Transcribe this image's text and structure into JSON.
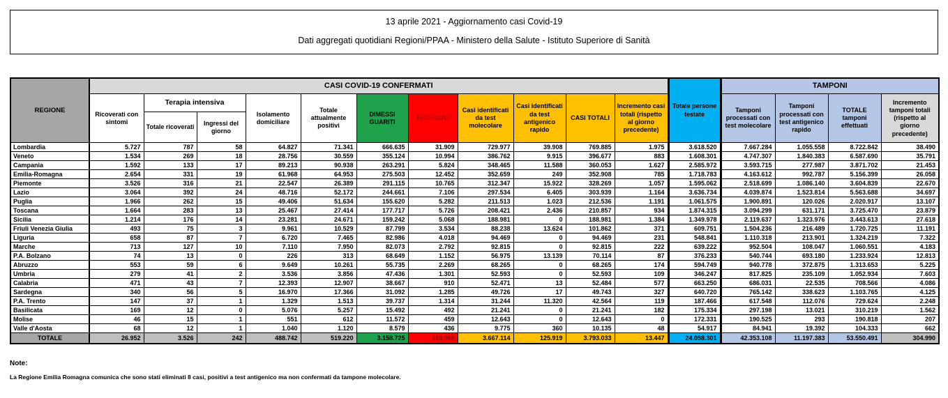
{
  "title": {
    "line1": "13 aprile 2021 - Aggiornamento casi Covid-19",
    "line2": "Dati aggregati quotidiani Regioni/PPAA - Ministero della Salute - Istituto Superiore di Sanità"
  },
  "table": {
    "headers": {
      "regione": "REGIONE",
      "confirmed_band": "CASI COVID-19 CONFERMATI",
      "tamponi_band": "TAMPONI",
      "terapia_band": "Terapia intensiva",
      "ricoverati": "Ricoverati con sintomi",
      "terapia_totale": "Totale ricoverati",
      "terapia_ingressi": "Ingressi del giorno",
      "isolamento": "Isolamento domiciliare",
      "attualmente_positivi": "Totale attualmente positivi",
      "dimessi": "DIMESSI GUARITI",
      "deceduti": "DECEDUTI",
      "casi_molecolare": "Casi identificati da test molecolare",
      "casi_antigenico": "Casi identificati da test antigenico rapido",
      "casi_totali": "CASI TOTALI",
      "incremento_casi": "Incremento casi totali (rispetto al giorno precedente)",
      "persone_testate": "Totale persone testate",
      "tamponi_molecolare": "Tamponi processati con test molecolare",
      "tamponi_antigenico": "Tamponi processati con test antigenico rapido",
      "tamponi_totale": "TOTALE tamponi effettuati",
      "incremento_tamponi": "Incremento tamponi totali (rispetto al giorno precedente)"
    },
    "rows": [
      {
        "region": "Lombardia",
        "values": [
          "5.727",
          "787",
          "58",
          "64.827",
          "71.341",
          "666.635",
          "31.909",
          "729.977",
          "39.908",
          "769.885",
          "1.975",
          "3.618.520",
          "7.667.284",
          "1.055.558",
          "8.722.842",
          "38.490"
        ]
      },
      {
        "region": "Veneto",
        "values": [
          "1.534",
          "269",
          "18",
          "28.756",
          "30.559",
          "355.124",
          "10.994",
          "386.762",
          "9.915",
          "396.677",
          "883",
          "1.608.301",
          "4.747.307",
          "1.840.383",
          "6.587.690",
          "35.791"
        ]
      },
      {
        "region": "Campania",
        "values": [
          "1.592",
          "133",
          "17",
          "89.213",
          "90.938",
          "263.291",
          "5.824",
          "348.465",
          "11.588",
          "360.053",
          "1.627",
          "2.585.972",
          "3.593.715",
          "277.987",
          "3.871.702",
          "21.453"
        ]
      },
      {
        "region": "Emilia-Romagna",
        "values": [
          "2.654",
          "331",
          "19",
          "61.968",
          "64.953",
          "275.503",
          "12.452",
          "352.659",
          "249",
          "352.908",
          "785",
          "1.718.783",
          "4.163.612",
          "992.787",
          "5.156.399",
          "26.058"
        ]
      },
      {
        "region": "Piemonte",
        "values": [
          "3.526",
          "316",
          "21",
          "22.547",
          "26.389",
          "291.115",
          "10.765",
          "312.347",
          "15.922",
          "328.269",
          "1.057",
          "1.595.062",
          "2.518.699",
          "1.086.140",
          "3.604.839",
          "22.670"
        ]
      },
      {
        "region": "Lazio",
        "values": [
          "3.064",
          "392",
          "24",
          "48.716",
          "52.172",
          "244.661",
          "7.106",
          "297.534",
          "6.405",
          "303.939",
          "1.164",
          "3.636.734",
          "4.039.874",
          "1.523.814",
          "5.563.688",
          "34.697"
        ]
      },
      {
        "region": "Puglia",
        "values": [
          "1.966",
          "262",
          "15",
          "49.406",
          "51.634",
          "155.620",
          "5.282",
          "211.513",
          "1.023",
          "212.536",
          "1.191",
          "1.061.575",
          "1.900.891",
          "120.026",
          "2.020.917",
          "13.107"
        ]
      },
      {
        "region": "Toscana",
        "values": [
          "1.664",
          "283",
          "13",
          "25.467",
          "27.414",
          "177.717",
          "5.726",
          "208.421",
          "2.436",
          "210.857",
          "934",
          "1.874.315",
          "3.094.299",
          "631.171",
          "3.725.470",
          "23.879"
        ]
      },
      {
        "region": "Sicilia",
        "values": [
          "1.214",
          "176",
          "14",
          "23.281",
          "24.671",
          "159.242",
          "5.068",
          "188.981",
          "0",
          "188.981",
          "1.384",
          "1.349.978",
          "2.119.637",
          "1.323.976",
          "3.443.613",
          "27.618"
        ]
      },
      {
        "region": "Friuli Venezia Giulia",
        "values": [
          "493",
          "75",
          "3",
          "9.961",
          "10.529",
          "87.799",
          "3.534",
          "88.238",
          "13.624",
          "101.862",
          "371",
          "609.751",
          "1.504.236",
          "216.489",
          "1.720.725",
          "11.191"
        ]
      },
      {
        "region": "Liguria",
        "values": [
          "658",
          "87",
          "7",
          "6.720",
          "7.465",
          "82.986",
          "4.018",
          "94.469",
          "0",
          "94.469",
          "231",
          "548.841",
          "1.110.318",
          "213.901",
          "1.324.219",
          "7.322"
        ]
      },
      {
        "region": "Marche",
        "values": [
          "713",
          "127",
          "10",
          "7.110",
          "7.950",
          "82.073",
          "2.792",
          "92.815",
          "0",
          "92.815",
          "222",
          "639.222",
          "952.504",
          "108.047",
          "1.060.551",
          "4.183"
        ]
      },
      {
        "region": "P.A. Bolzano",
        "values": [
          "74",
          "13",
          "0",
          "226",
          "313",
          "68.649",
          "1.152",
          "56.975",
          "13.139",
          "70.114",
          "87",
          "376.233",
          "540.744",
          "693.180",
          "1.233.924",
          "12.813"
        ]
      },
      {
        "region": "Abruzzo",
        "values": [
          "553",
          "59",
          "6",
          "9.649",
          "10.261",
          "55.735",
          "2.269",
          "68.265",
          "0",
          "68.265",
          "174",
          "594.749",
          "940.778",
          "372.875",
          "1.313.653",
          "5.225"
        ]
      },
      {
        "region": "Umbria",
        "values": [
          "279",
          "41",
          "2",
          "3.536",
          "3.856",
          "47.436",
          "1.301",
          "52.593",
          "0",
          "52.593",
          "109",
          "346.247",
          "817.825",
          "235.109",
          "1.052.934",
          "7.603"
        ]
      },
      {
        "region": "Calabria",
        "values": [
          "471",
          "43",
          "7",
          "12.393",
          "12.907",
          "38.667",
          "910",
          "52.471",
          "13",
          "52.484",
          "577",
          "663.250",
          "686.031",
          "22.535",
          "708.566",
          "4.086"
        ]
      },
      {
        "region": "Sardegna",
        "values": [
          "340",
          "56",
          "5",
          "16.970",
          "17.366",
          "31.092",
          "1.285",
          "49.726",
          "17",
          "49.743",
          "327",
          "640.720",
          "765.142",
          "338.623",
          "1.103.765",
          "4.125"
        ]
      },
      {
        "region": "P.A. Trento",
        "values": [
          "147",
          "37",
          "1",
          "1.329",
          "1.513",
          "39.737",
          "1.314",
          "31.244",
          "11.320",
          "42.564",
          "119",
          "187.466",
          "617.548",
          "112.076",
          "729.624",
          "2.248"
        ]
      },
      {
        "region": "Basilicata",
        "values": [
          "169",
          "12",
          "0",
          "5.076",
          "5.257",
          "15.492",
          "492",
          "21.241",
          "0",
          "21.241",
          "182",
          "175.334",
          "297.198",
          "13.021",
          "310.219",
          "1.562"
        ]
      },
      {
        "region": "Molise",
        "values": [
          "46",
          "15",
          "1",
          "551",
          "612",
          "11.572",
          "459",
          "12.643",
          "0",
          "12.643",
          "0",
          "172.331",
          "190.525",
          "293",
          "190.818",
          "207"
        ]
      },
      {
        "region": "Valle d'Aosta",
        "values": [
          "68",
          "12",
          "1",
          "1.040",
          "1.120",
          "8.579",
          "436",
          "9.775",
          "360",
          "10.135",
          "48",
          "54.917",
          "84.941",
          "19.392",
          "104.333",
          "662"
        ]
      }
    ],
    "total": {
      "label": "TOTALE",
      "values": [
        "26.952",
        "3.526",
        "242",
        "488.742",
        "519.220",
        "3.158.725",
        "115.088",
        "3.667.114",
        "125.919",
        "3.793.033",
        "13.447",
        "24.058.301",
        "42.353.108",
        "11.197.383",
        "53.550.491",
        "304.990"
      ]
    }
  },
  "notes": {
    "heading": "Note:",
    "line1": "La Regione Emilia Romagna comunica che sono stati eliminati 8 casi, positivi a test antigenico ma non confermati da tampone molecolare."
  },
  "colors": {
    "green": "#1FA24C",
    "red": "#FF0000",
    "gold": "#FFC000",
    "cyan": "#00B0F0",
    "light_blue": "#B4C7E7",
    "header_gray": "#A6A6A6",
    "band_gray": "#D9D9D9",
    "total_gray": "#BFBFBF"
  }
}
